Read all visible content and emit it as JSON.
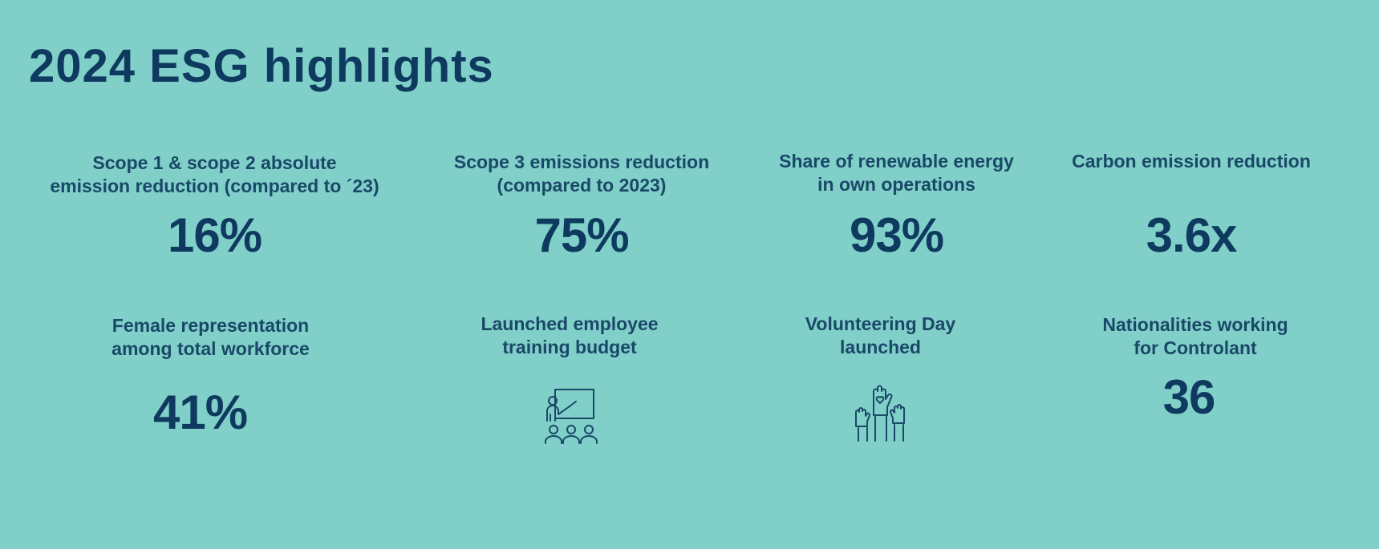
{
  "title": "2024 ESG highlights",
  "highlights": [
    {
      "label_lines": [
        "Scope 1 & scope 2 absolute",
        "emission reduction (compared to ´23)"
      ],
      "value": "16%"
    },
    {
      "label_lines": [
        "Scope 3 emissions reduction",
        "(compared to 2023)"
      ],
      "value": "75%"
    },
    {
      "label_lines": [
        "Share of renewable energy",
        "in own operations"
      ],
      "value": "93%"
    },
    {
      "label_lines": [
        "Carbon emission reduction"
      ],
      "value": "3.6x"
    },
    {
      "label_lines": [
        "Female representation",
        "among total workforce"
      ],
      "value": "41%"
    },
    {
      "label_lines": [
        "Launched employee",
        "training budget"
      ],
      "icon": "classroom-teacher-icon"
    },
    {
      "label_lines": [
        "Volunteering Day",
        "launched"
      ],
      "icon": "raised-hands-heart-icon"
    },
    {
      "label_lines": [
        "Nationalities working",
        "for Controlant"
      ],
      "value": "36"
    }
  ],
  "colors": {
    "background": "#80d0c9",
    "text": "#0f3a5f"
  }
}
